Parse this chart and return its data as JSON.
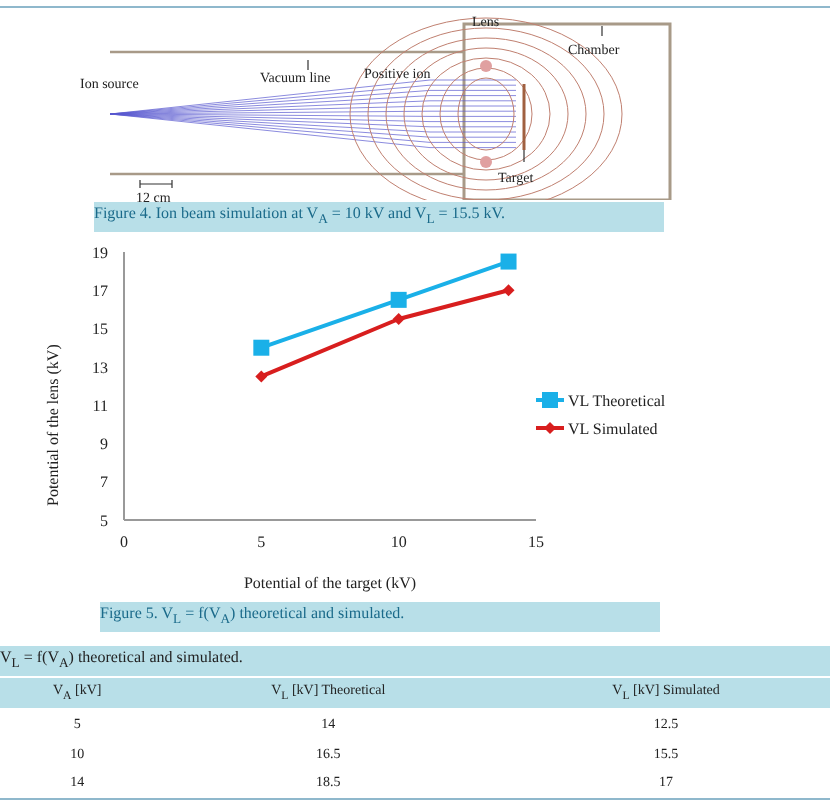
{
  "chart_data": {
    "type": "line",
    "x": [
      5,
      10,
      14
    ],
    "series": [
      {
        "name": "VL Theoretical",
        "color": "#1ab0e8",
        "marker": "square",
        "values": [
          14,
          16.5,
          18.5
        ]
      },
      {
        "name": "VL Simulated",
        "color": "#d81e1e",
        "marker": "diamond",
        "values": [
          12.5,
          15.5,
          17
        ]
      }
    ],
    "xlim": [
      0,
      15
    ],
    "xticks": [
      0,
      5,
      10,
      15
    ],
    "ylim": [
      5,
      19
    ],
    "yticks": [
      5,
      7,
      9,
      11,
      13,
      15,
      17,
      19
    ],
    "xlabel": "Potential of the target (kV)",
    "ylabel": "Potential of the lens (kV)",
    "legend": "right",
    "annotations": [
      "Ion source",
      "Vacuum line",
      "Positive ion",
      "Lens",
      "Chamber",
      "Target",
      "12 cm",
      "Figure 4. Ion beam simulation at V$_{A}$ = 10 kV and V$_{L}$ = 15.5 kV.",
      "Figure 5. V$_{L}$ = f(V$_{A}$) theoretical and simulated.",
      "V$_{L}$ = f(V$_{A}$) theoretical and simulated.",
      "V$_{A}$ [kV]",
      "V$_{L}$ [kV] Theoretical",
      "V$_{L}$ [kV] Simulated",
      "5",
      "14",
      "12.5",
      "10",
      "16.5",
      "15.5",
      "14",
      "18.5",
      "17"
    ]
  }
}
